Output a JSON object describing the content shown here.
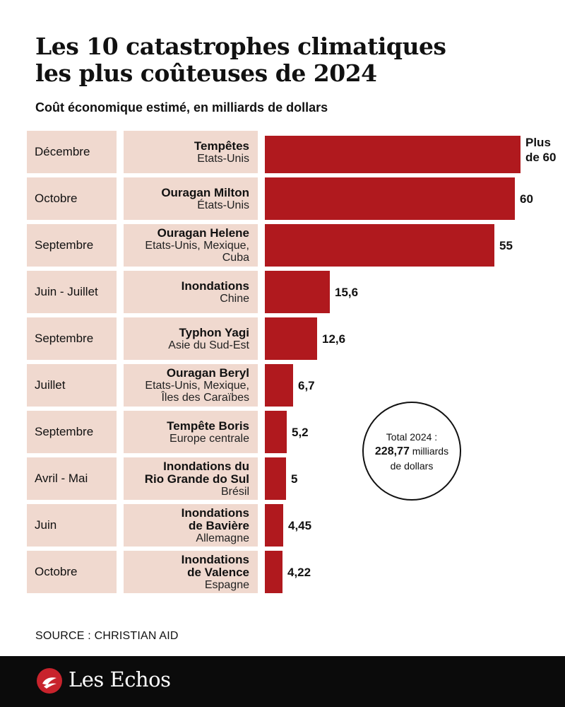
{
  "title_line1": "Les 10 catastrophes climatiques",
  "title_line2": "les plus coûteuses de 2024",
  "subtitle": "Coût économique estimé, en milliards de dollars",
  "colors": {
    "bar": "#b0191e",
    "cell": "#f0d9cf",
    "footer": "#0b0b0b",
    "logo_mark": "#c8232c"
  },
  "chart_data": {
    "type": "bar",
    "orientation": "horizontal",
    "title": "Les 10 catastrophes climatiques les plus coûteuses de 2024",
    "subtitle": "Coût économique estimé, en milliards de dollars",
    "categories": [
      "Tempêtes",
      "Ouragan Milton",
      "Ouragan Helene",
      "Inondations",
      "Typhon Yagi",
      "Ouragan Beryl",
      "Tempête Boris",
      "Inondations du Rio Grande do Sul",
      "Inondations de Bavière",
      "Inondations de Valence"
    ],
    "values": [
      60,
      60,
      55,
      15.6,
      12.6,
      6.7,
      5.2,
      5,
      4.45,
      4.22
    ],
    "xlim": [
      0,
      61.3
    ],
    "rows": [
      {
        "month": "Décembre",
        "event": "Tempêtes",
        "place": "Etats-Unis",
        "value": 60,
        "label": "Plus\nde 60",
        "full_bar": true
      },
      {
        "month": "Octobre",
        "event": "Ouragan Milton",
        "place": "États-Unis",
        "value": 60,
        "label": "60"
      },
      {
        "month": "Septembre",
        "event": "Ouragan Helene",
        "place": "Etats-Unis, Mexique,\nCuba",
        "value": 55,
        "label": "55"
      },
      {
        "month": "Juin - Juillet",
        "event": "Inondations",
        "place": "Chine",
        "value": 15.6,
        "label": "15,6"
      },
      {
        "month": "Septembre",
        "event": "Typhon Yagi",
        "place": "Asie du Sud-Est",
        "value": 12.6,
        "label": "12,6"
      },
      {
        "month": "Juillet",
        "event": "Ouragan Beryl",
        "place": "Etats-Unis, Mexique,\nÎles des Caraïbes",
        "value": 6.7,
        "label": "6,7"
      },
      {
        "month": "Septembre",
        "event": "Tempête Boris",
        "place": "Europe centrale",
        "value": 5.2,
        "label": "5,2"
      },
      {
        "month": "Avril - Mai",
        "event": "Inondations du\nRio Grande do Sul",
        "place": "Brésil",
        "value": 5,
        "label": "5"
      },
      {
        "month": "Juin",
        "event": "Inondations\nde Bavière",
        "place": "Allemagne",
        "value": 4.45,
        "label": "4,45"
      },
      {
        "month": "Octobre",
        "event": "Inondations\nde Valence",
        "place": "Espagne",
        "value": 4.22,
        "label": "4,22"
      }
    ]
  },
  "total": {
    "prefix": "Total 2024 :",
    "amount": "228,77",
    "unit1": "milliards",
    "unit2": "de dollars"
  },
  "source": "SOURCE : CHRISTIAN AID",
  "brand": {
    "name": "Les Echos",
    "logo_icon": "les-echos-logo-icon"
  }
}
